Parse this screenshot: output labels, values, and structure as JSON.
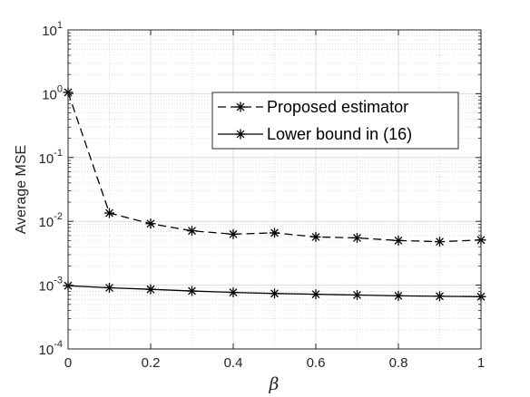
{
  "chart_data": {
    "type": "line",
    "title": "",
    "xlabel": "β",
    "ylabel": "Average MSE",
    "yscale": "log",
    "xlim": [
      0,
      1
    ],
    "ylim": [
      0.0001,
      10
    ],
    "x_ticks": [
      "0",
      "0.2",
      "0.4",
      "0.6",
      "0.8",
      "1"
    ],
    "y_ticks": [
      {
        "base": "10",
        "exp": "-4"
      },
      {
        "base": "10",
        "exp": "-3"
      },
      {
        "base": "10",
        "exp": "-2"
      },
      {
        "base": "10",
        "exp": "-1"
      },
      {
        "base": "10",
        "exp": "0"
      },
      {
        "base": "10",
        "exp": "1"
      }
    ],
    "grid": true,
    "minor_grid": true,
    "legend_position": "upper-right",
    "x": [
      0,
      0.1,
      0.2,
      0.3,
      0.4,
      0.5,
      0.6,
      0.7,
      0.8,
      0.9,
      1.0
    ],
    "series": [
      {
        "name": "Proposed estimator",
        "line_style": "dashed",
        "marker": "asterisk",
        "color": "#000000",
        "values": [
          1.05,
          0.0135,
          0.0092,
          0.0071,
          0.0063,
          0.0066,
          0.0057,
          0.0055,
          0.005,
          0.0048,
          0.0051
        ]
      },
      {
        "name": "Lower bound in (16)",
        "line_style": "solid",
        "marker": "asterisk",
        "color": "#000000",
        "values": [
          0.00098,
          0.00091,
          0.00086,
          0.00081,
          0.00077,
          0.00074,
          0.00072,
          0.0007,
          0.00068,
          0.00067,
          0.00066
        ]
      }
    ]
  }
}
